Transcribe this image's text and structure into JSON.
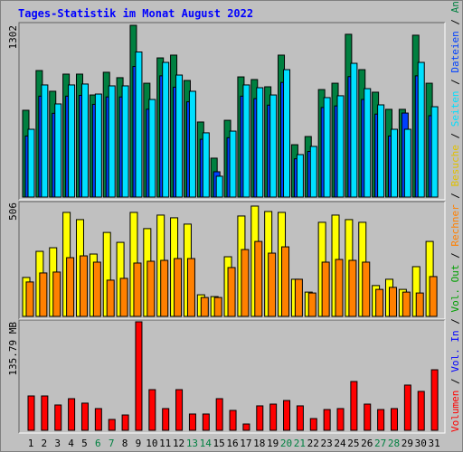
{
  "title": "Tages-Statistik im Monat August 2022",
  "legend_separator": " / ",
  "chart_data": [
    {
      "type": "bar",
      "ylim": [
        0,
        1302
      ],
      "yticks": [
        1302
      ],
      "series": [
        {
          "name": "Seiten",
          "color": "#00e0ff",
          "values": [
            514,
            850,
            706,
            850,
            857,
            781,
            843,
            843,
            1100,
            740,
            1021,
            925,
            802,
            487,
            158,
            500,
            850,
            829,
            774,
            966,
            322,
            384,
            754,
            768,
            1014,
            822,
            699,
            514,
            514,
            1021,
            685
          ]
        },
        {
          "name": "Dateien",
          "color": "#0040ff",
          "values": [
            463,
            765,
            635,
            765,
            771,
            703,
            759,
            759,
            990,
            666,
            919,
            833,
            722,
            438,
            192,
            450,
            765,
            746,
            697,
            869,
            290,
            346,
            679,
            691,
            913,
            740,
            629,
            463,
            637,
            919,
            617
          ]
        },
        {
          "name": "Anfragen",
          "color": "#008040",
          "values": [
            658,
            959,
            802,
            932,
            932,
            774,
            946,
            905,
            1302,
            863,
            1055,
            1076,
            884,
            569,
            295,
            582,
            911,
            891,
            836,
            1076,
            397,
            459,
            815,
            863,
            1234,
            966,
            795,
            665,
            665,
            1227,
            863
          ]
        }
      ]
    },
    {
      "type": "bar",
      "ylim": [
        0,
        506
      ],
      "yticks": [
        506
      ],
      "series": [
        {
          "name": "Rechner",
          "color": "#ff8000",
          "values": [
            153,
            193,
            197,
            261,
            269,
            241,
            161,
            169,
            237,
            245,
            249,
            257,
            257,
            84,
            84,
            217,
            297,
            333,
            281,
            309,
            165,
            104,
            241,
            253,
            249,
            241,
            120,
            129,
            108,
            104,
            177
          ]
        },
        {
          "name": "Besuche",
          "color": "#ffff00",
          "values": [
            173,
            289,
            305,
            462,
            430,
            277,
            373,
            329,
            462,
            390,
            450,
            438,
            410,
            96,
            88,
            265,
            446,
            490,
            466,
            462,
            165,
            108,
            418,
            450,
            430,
            418,
            137,
            165,
            120,
            221,
            333
          ]
        }
      ]
    },
    {
      "type": "bar",
      "ylim": [
        0,
        135.79
      ],
      "yticks": [
        {
          "value": 135.79,
          "label": "135.79 MB"
        }
      ],
      "categories": [
        "1",
        "2",
        "3",
        "4",
        "5",
        "6",
        "7",
        "8",
        "9",
        "10",
        "11",
        "12",
        "13",
        "14",
        "15",
        "16",
        "17",
        "18",
        "19",
        "20",
        "21",
        "22",
        "23",
        "24",
        "25",
        "26",
        "27",
        "28",
        "29",
        "30",
        "31"
      ],
      "category_colors": [
        "#000000",
        "#000000",
        "#000000",
        "#000000",
        "#000000",
        "#008040",
        "#008040",
        "#000000",
        "#000000",
        "#000000",
        "#000000",
        "#000000",
        "#008040",
        "#008040",
        "#000000",
        "#000000",
        "#000000",
        "#000000",
        "#000000",
        "#008040",
        "#008040",
        "#000000",
        "#000000",
        "#000000",
        "#000000",
        "#000000",
        "#008040",
        "#008040",
        "#000000",
        "#000000",
        "#000000"
      ],
      "series": [
        {
          "name": "Volumen",
          "color": "#ff0000",
          "values": [
            43.0,
            43.0,
            31.7,
            39.6,
            34.0,
            27.2,
            13.6,
            19.2,
            135.79,
            50.9,
            27.2,
            50.9,
            20.4,
            20.4,
            39.6,
            24.9,
            7.9,
            30.6,
            32.8,
            37.3,
            30.6,
            14.7,
            26.0,
            27.2,
            61.1,
            32.8,
            26.0,
            27.2,
            56.6,
            48.7,
            75.8
          ]
        },
        {
          "name": "Vol. In",
          "color": "#0000ff",
          "values": [
            0,
            0,
            0,
            0,
            0,
            0,
            0,
            0,
            0,
            0,
            0,
            0,
            0,
            0,
            0,
            0,
            0,
            0,
            0,
            0,
            0,
            0,
            0,
            0,
            0,
            0,
            0,
            0,
            0,
            0,
            0
          ]
        },
        {
          "name": "Vol. Out",
          "color": "#00a000",
          "values": [
            0,
            0,
            0,
            0,
            0,
            0,
            0,
            0,
            0,
            0,
            0,
            0,
            0,
            0,
            0,
            0,
            0,
            0,
            0,
            0,
            0,
            0,
            0,
            0,
            0,
            0,
            0,
            0,
            0,
            0,
            0
          ]
        }
      ]
    }
  ]
}
